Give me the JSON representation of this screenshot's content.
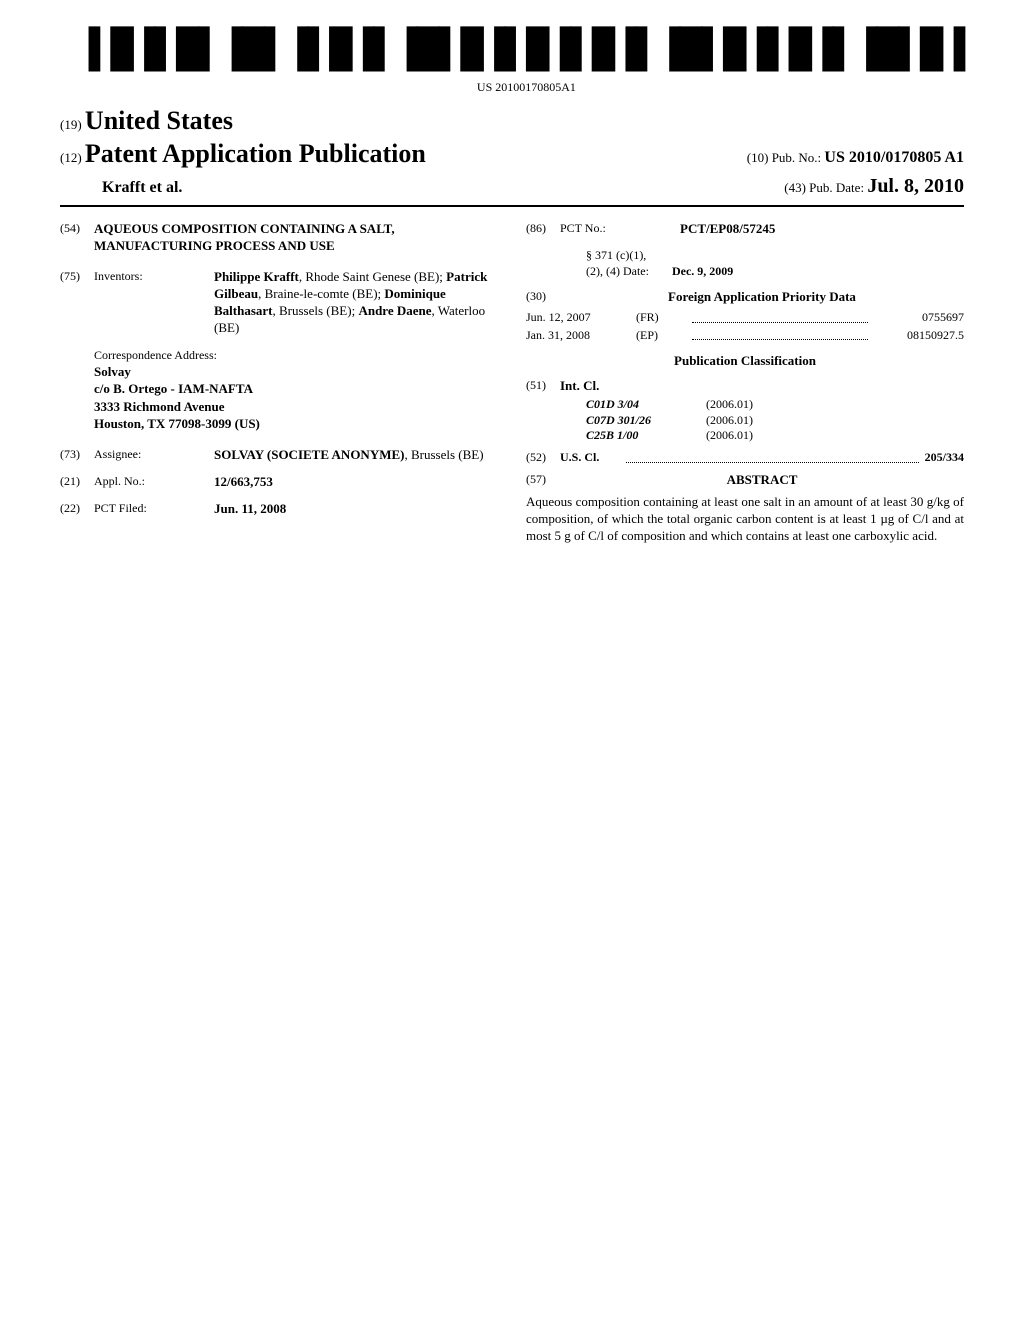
{
  "barcode_text": "US 20100170805A1",
  "header": {
    "prefix19": "(19)",
    "country": "United States",
    "prefix12": "(12)",
    "doctype": "Patent Application Publication",
    "authors_line": "Krafft et al.",
    "prefix10": "(10)",
    "pubno_label": "Pub. No.:",
    "pubno": "US 2010/0170805 A1",
    "prefix43": "(43)",
    "pubdate_label": "Pub. Date:",
    "pubdate": "Jul. 8, 2010"
  },
  "left": {
    "title_num": "(54)",
    "title": "AQUEOUS COMPOSITION CONTAINING A SALT, MANUFACTURING PROCESS AND USE",
    "inventors_num": "(75)",
    "inventors_label": "Inventors:",
    "inventors_html": [
      {
        "name": "Philippe Krafft",
        "loc": ", Rhode Saint Genese (BE); "
      },
      {
        "name": "Patrick Gilbeau",
        "loc": ", Braine-le-comte (BE); "
      },
      {
        "name": "Dominique Balthasart",
        "loc": ", Brussels (BE); "
      },
      {
        "name": "Andre Daene",
        "loc": ", Waterloo (BE)"
      }
    ],
    "corr_label": "Correspondence Address:",
    "corr_lines": [
      "Solvay",
      "c/o B. Ortego - IAM-NAFTA",
      "3333 Richmond Avenue",
      "Houston, TX 77098-3099 (US)"
    ],
    "assignee_num": "(73)",
    "assignee_label": "Assignee:",
    "assignee": "SOLVAY (SOCIETE ANONYME)",
    "assignee_loc": ", Brussels (BE)",
    "appl_num": "(21)",
    "appl_label": "Appl. No.:",
    "appl": "12/663,753",
    "filed_num": "(22)",
    "filed_label": "PCT Filed:",
    "filed": "Jun. 11, 2008"
  },
  "right": {
    "pct_num": "(86)",
    "pct_label": "PCT No.:",
    "pct": "PCT/EP08/57245",
    "s371_1": "§ 371 (c)(1),",
    "s371_2": "(2), (4) Date:",
    "s371_date": "Dec. 9, 2009",
    "foreign_num": "(30)",
    "foreign_head": "Foreign Application Priority Data",
    "priority": [
      {
        "date": "Jun. 12, 2007",
        "cc": "(FR)",
        "no": "0755697"
      },
      {
        "date": "Jan. 31, 2008",
        "cc": "(EP)",
        "no": "08150927.5"
      }
    ],
    "pubclass_head": "Publication Classification",
    "intcl_num": "(51)",
    "intcl_label": "Int. Cl.",
    "intcl": [
      {
        "code": "C01D 3/04",
        "yr": "(2006.01)"
      },
      {
        "code": "C07D 301/26",
        "yr": "(2006.01)"
      },
      {
        "code": "C25B 1/00",
        "yr": "(2006.01)"
      }
    ],
    "uscl_num": "(52)",
    "uscl_label": "U.S. Cl.",
    "uscl": "205/334",
    "abstract_num": "(57)",
    "abstract_label": "ABSTRACT",
    "abstract": "Aqueous composition containing at least one salt in an amount of at least 30 g/kg of composition, of which the total organic carbon content is at least 1 µg of C/l and at most 5 g of C/l of composition and which contains at least one carboxylic acid."
  }
}
